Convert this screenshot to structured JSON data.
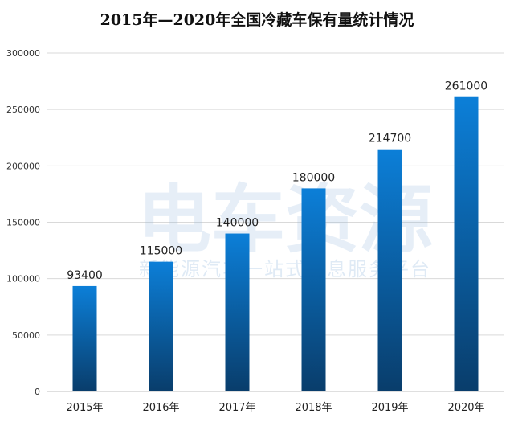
{
  "watermark": {
    "main": "电车资源",
    "sub": "新能源汽车一站式信息服务平台"
  },
  "chart_data": {
    "type": "bar",
    "title": "2015年—2020年全国冷藏车保有量统计情况",
    "categories": [
      "2015年",
      "2016年",
      "2017年",
      "2018年",
      "2019年",
      "2020年"
    ],
    "values": [
      93400,
      115000,
      140000,
      180000,
      214700,
      261000
    ],
    "ylim": [
      0,
      300000
    ],
    "yticks": [
      0,
      50000,
      100000,
      150000,
      200000,
      250000,
      300000
    ],
    "xlabel": "",
    "ylabel": "",
    "grid": true,
    "colors": {
      "bar_top": "#0c7fd8",
      "bar_bottom": "#093d6b",
      "grid": "#d9d9d9"
    }
  }
}
